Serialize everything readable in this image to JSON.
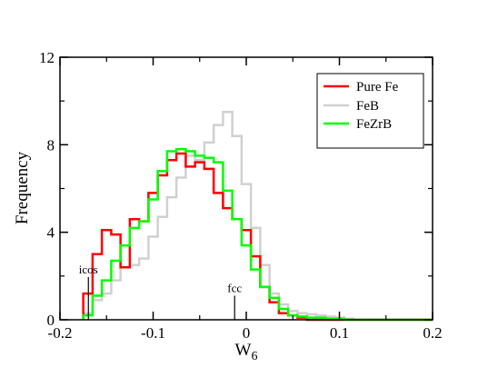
{
  "chart_data": {
    "type": "histogram",
    "xlabel": "W",
    "xlabel_subscript": "6",
    "ylabel": "Frequency",
    "xlim": [
      -0.2,
      0.2
    ],
    "ylim": [
      0,
      12
    ],
    "xticks": [
      -0.2,
      -0.1,
      0,
      0.1,
      0.2
    ],
    "xtick_labels": [
      "-0.2",
      "-0.1",
      "0",
      "0.1",
      "0.2"
    ],
    "yticks": [
      0,
      4,
      8,
      12
    ],
    "ytick_labels": [
      "0",
      "4",
      "8",
      "12"
    ],
    "grid": false,
    "legend_position": "top-right",
    "bin_width": 0.01,
    "series": [
      {
        "name": "Pure Fe",
        "color": "#ff0000",
        "bins_start": [
          -0.175,
          -0.165,
          -0.155,
          -0.145,
          -0.135,
          -0.125,
          -0.115,
          -0.105,
          -0.095,
          -0.085,
          -0.075,
          -0.065,
          -0.055,
          -0.045,
          -0.035,
          -0.025,
          -0.015,
          -0.005,
          0.005,
          0.015,
          0.025,
          0.035,
          0.045,
          0.055,
          0.065
        ],
        "values": [
          1.2,
          3.0,
          4.1,
          3.9,
          2.4,
          4.6,
          4.5,
          5.8,
          6.6,
          7.3,
          7.6,
          7.0,
          7.2,
          6.9,
          5.8,
          5.1,
          4.6,
          4.1,
          2.9,
          1.5,
          0.8,
          0.3,
          0.2,
          0.1,
          0.0
        ]
      },
      {
        "name": "FeB",
        "color": "#d0d0d0",
        "bins_start": [
          -0.175,
          -0.165,
          -0.155,
          -0.145,
          -0.135,
          -0.125,
          -0.115,
          -0.105,
          -0.095,
          -0.085,
          -0.075,
          -0.065,
          -0.055,
          -0.045,
          -0.035,
          -0.025,
          -0.015,
          -0.005,
          0.005,
          0.015,
          0.025,
          0.035,
          0.045,
          0.055,
          0.065,
          0.075,
          0.085,
          0.095,
          0.105
        ],
        "values": [
          0.3,
          0.9,
          1.2,
          1.8,
          2.4,
          2.5,
          2.8,
          3.8,
          4.7,
          5.6,
          6.5,
          7.5,
          7.3,
          8.1,
          8.9,
          9.5,
          8.4,
          6.2,
          4.2,
          2.5,
          1.2,
          0.7,
          0.4,
          0.3,
          0.25,
          0.2,
          0.15,
          0.1,
          0.05
        ]
      },
      {
        "name": "FeZrB",
        "color": "#00ff00",
        "bins_start": [
          -0.175,
          -0.165,
          -0.155,
          -0.145,
          -0.135,
          -0.125,
          -0.115,
          -0.105,
          -0.095,
          -0.085,
          -0.075,
          -0.065,
          -0.055,
          -0.045,
          -0.035,
          -0.025,
          -0.015,
          -0.005,
          0.005,
          0.015,
          0.025,
          0.035,
          0.045,
          0.055,
          0.065,
          0.075,
          0.085,
          0.095,
          0.105
        ],
        "values": [
          0.2,
          1.1,
          1.8,
          2.7,
          3.4,
          4.2,
          4.5,
          5.5,
          6.8,
          7.7,
          7.8,
          7.7,
          7.5,
          7.4,
          7.2,
          5.9,
          4.6,
          3.4,
          2.3,
          1.5,
          1.0,
          0.5,
          0.2,
          0.15,
          0.1,
          0.1,
          0.05,
          0.05,
          0.0
        ]
      }
    ],
    "annotations": [
      {
        "label": "icos",
        "x": -0.1695,
        "y_top": 1.95,
        "y_bottom": 0.0
      },
      {
        "label": "fcc",
        "x": -0.0125,
        "y_top": 1.1,
        "y_bottom": 0.0
      }
    ]
  }
}
